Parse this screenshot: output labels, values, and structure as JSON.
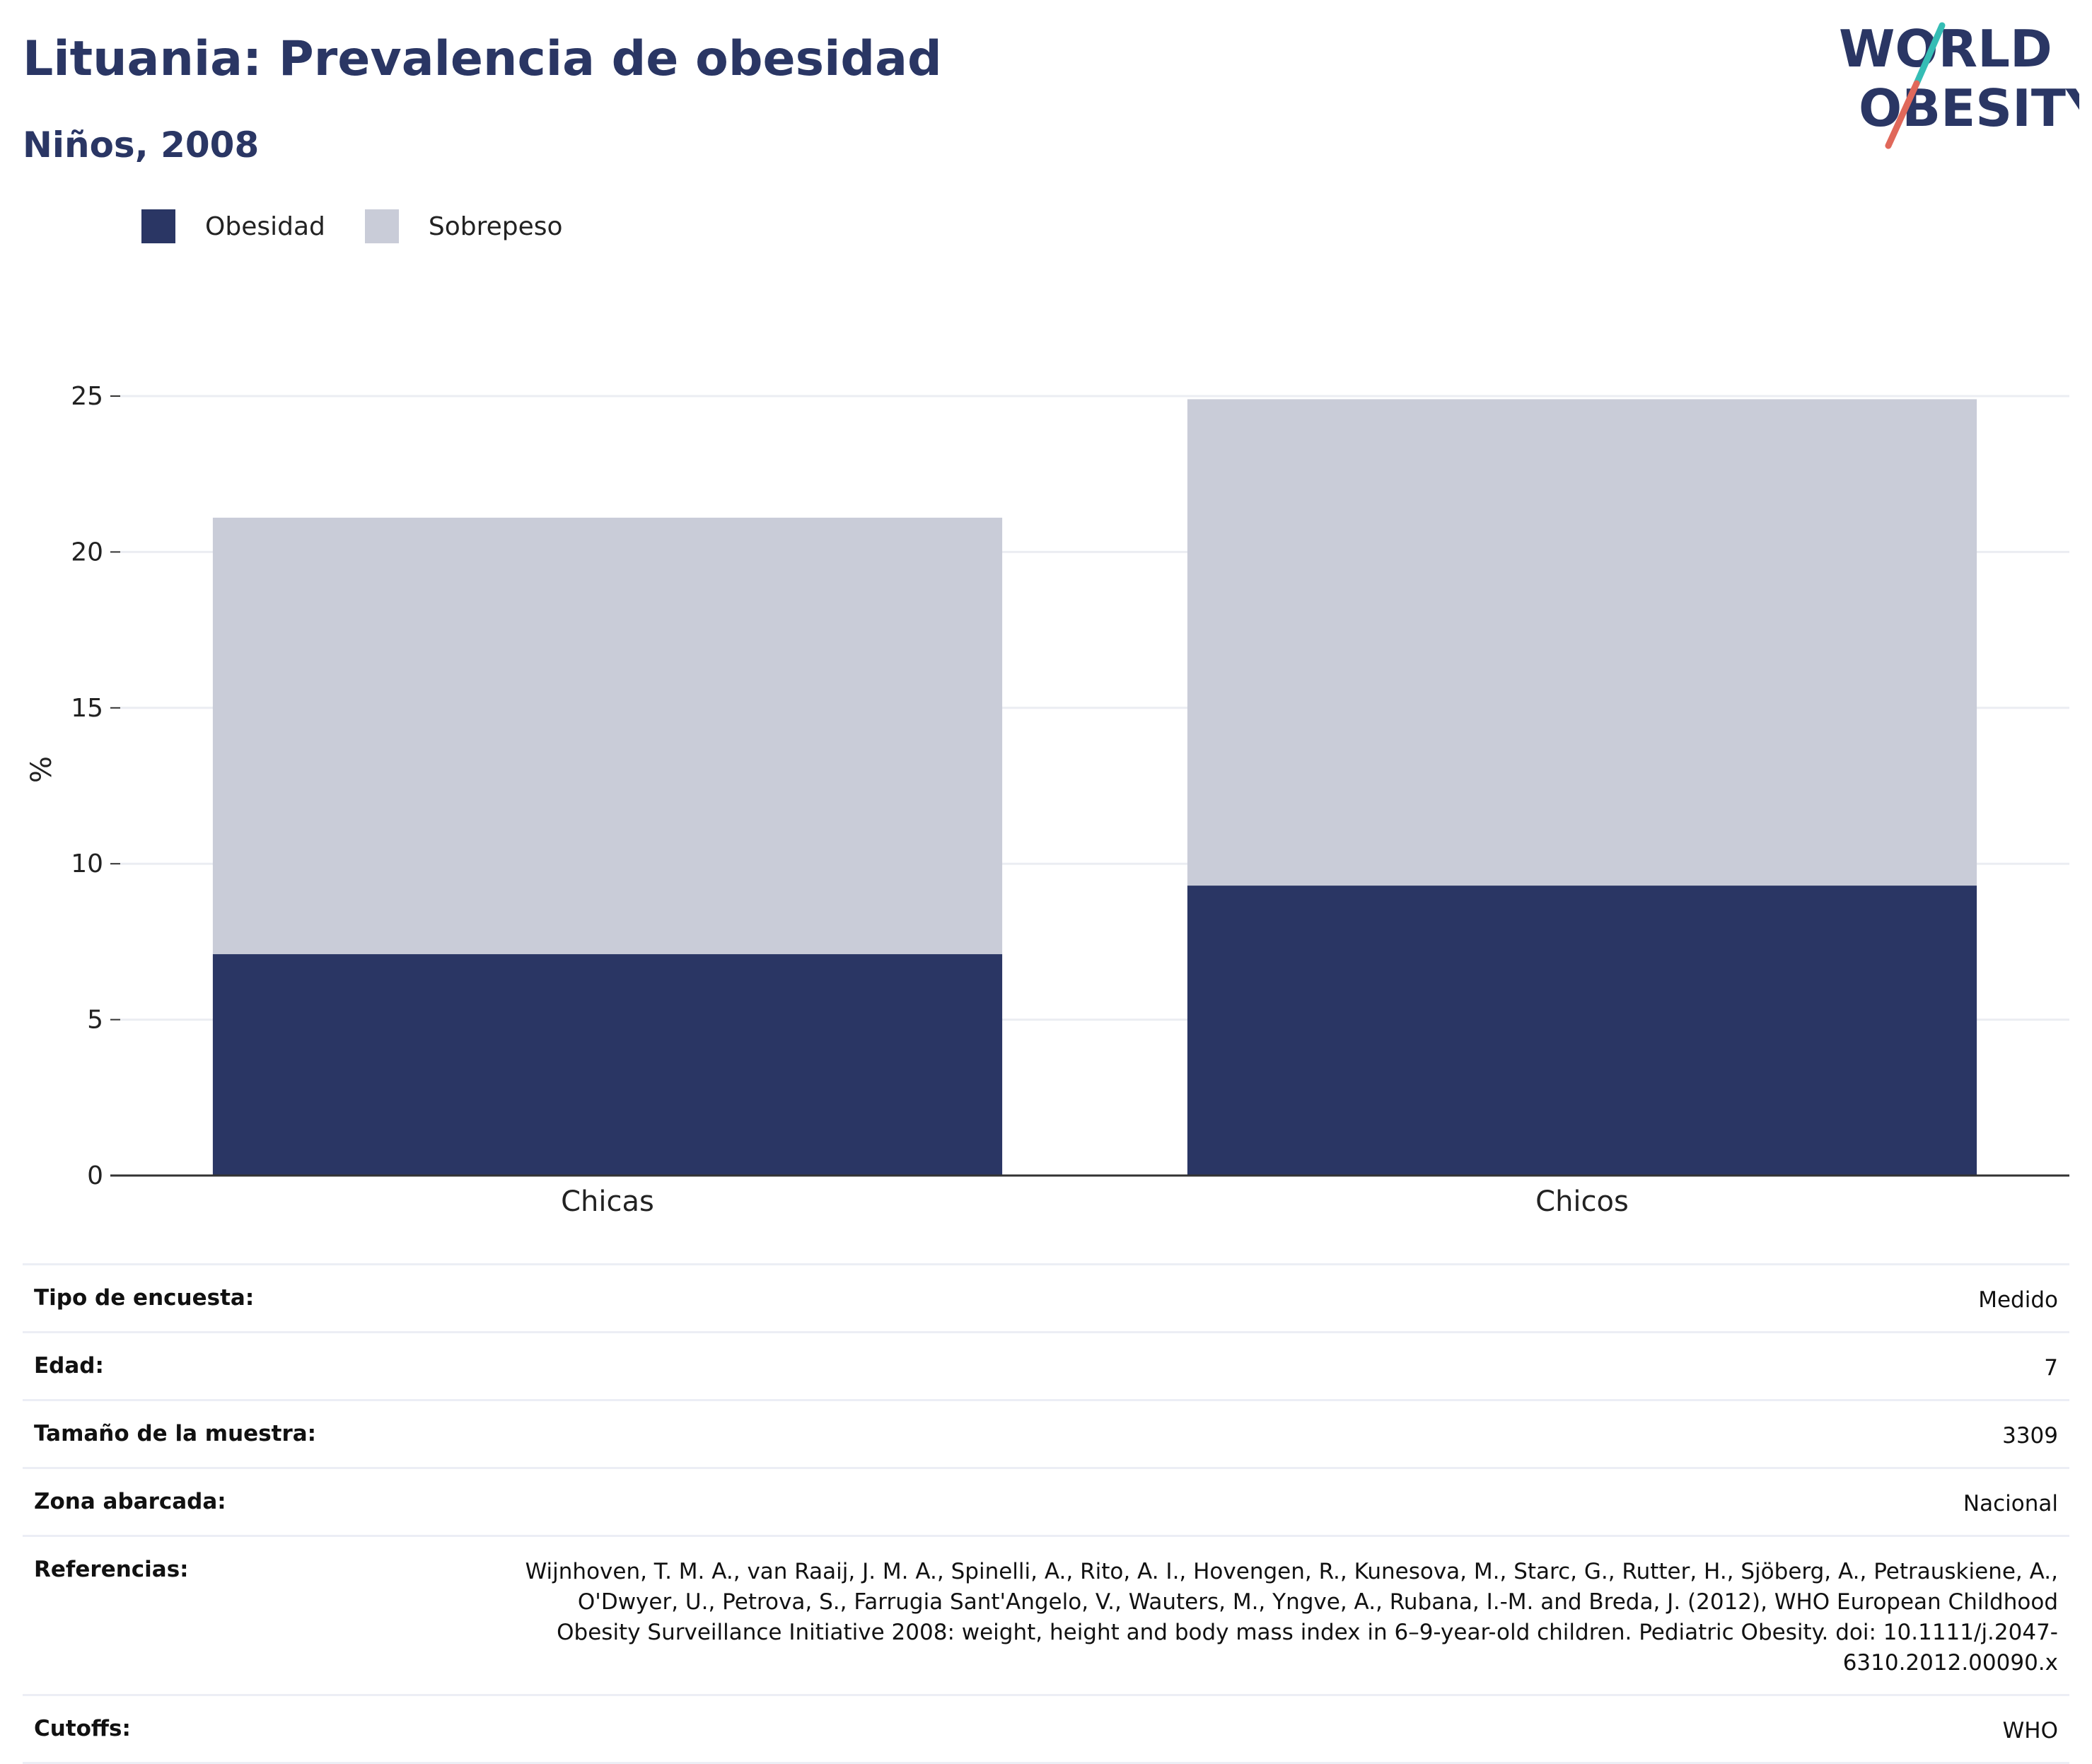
{
  "header": {
    "title": "Lituania: Prevalencia de obesidad",
    "subtitle": "Niños, 2008",
    "logo_line1": "WORLD",
    "logo_line2": "OBESITY"
  },
  "colors": {
    "obesity": "#2a3664",
    "overweight": "#c9ccd8",
    "logo_teal": "#35bdb5",
    "logo_coral": "#e0685a"
  },
  "legend": [
    {
      "label": "Obesidad",
      "color": "#2a3664"
    },
    {
      "label": "Sobrepeso",
      "color": "#c9ccd8"
    }
  ],
  "chart_data": {
    "type": "bar",
    "stacked": true,
    "categories": [
      "Chicas",
      "Chicos"
    ],
    "series": [
      {
        "name": "Obesidad",
        "values": [
          7.1,
          9.3
        ]
      },
      {
        "name": "Sobrepeso",
        "values": [
          14.0,
          15.6
        ]
      }
    ],
    "title": "Lituania: Prevalencia de obesidad",
    "subtitle": "Niños, 2008",
    "xlabel": "",
    "ylabel": "%",
    "ylim": [
      0,
      25
    ],
    "yticks": [
      0,
      5,
      10,
      15,
      20,
      25
    ],
    "grid": true,
    "legend_position": "top-left"
  },
  "info": {
    "rows": [
      {
        "key": "Tipo de encuesta:",
        "value": "Medido"
      },
      {
        "key": "Edad:",
        "value": "7"
      },
      {
        "key": "Tamaño de la muestra:",
        "value": "3309"
      },
      {
        "key": "Zona abarcada:",
        "value": "Nacional"
      },
      {
        "key": "Referencias:",
        "value": "Wijnhoven, T. M. A., van Raaij, J. M. A., Spinelli, A., Rito, A. I., Hovengen, R., Kunesova, M., Starc, G., Rutter, H., Sjöberg, A., Petrauskiene, A., O'Dwyer, U., Petrova, S., Farrugia Sant'Angelo, V., Wauters, M., Yngve, A., Rubana, I.-M. and Breda, J. (2012), WHO European Childhood Obesity Surveillance Initiative 2008: weight, height and body mass index in 6–9-year-old children. Pediatric Obesity. doi: 10.1111/j.2047-6310.2012.00090.x"
      },
      {
        "key": "Cutoffs:",
        "value": "WHO"
      }
    ]
  }
}
